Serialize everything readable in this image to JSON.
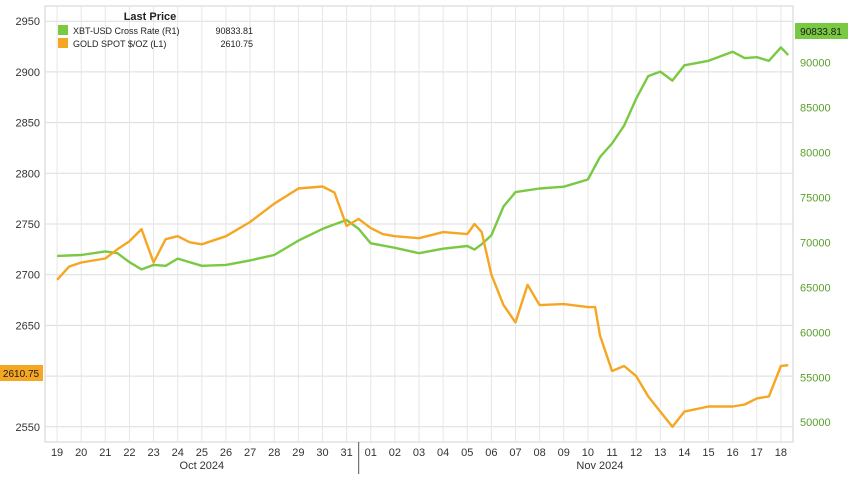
{
  "chart_data": {
    "type": "line",
    "legend": {
      "title": "Last Price",
      "placement": "top-left",
      "entries": [
        {
          "label": "XBT-USD Cross Rate  (R1)",
          "value": "90833.81",
          "color": "#7ac943"
        },
        {
          "label": "GOLD SPOT $/OZ  (L1)",
          "value": "2610.75",
          "color": "#f5a623"
        }
      ]
    },
    "y_left": {
      "ylim": [
        2535,
        2965
      ],
      "ticks": [
        "2950",
        "2900",
        "2850",
        "2800",
        "2750",
        "2700",
        "2650",
        "2600",
        "2550"
      ],
      "last_value_label": "2610.75"
    },
    "y_right": {
      "ylim": [
        47800,
        96300
      ],
      "ticks": [
        "90000",
        "85000",
        "80000",
        "75000",
        "70000",
        "65000",
        "60000",
        "55000",
        "50000"
      ],
      "last_value_label": "90833.81"
    },
    "x_axis": {
      "day_labels": [
        "19",
        "20",
        "21",
        "22",
        "23",
        "24",
        "25",
        "26",
        "27",
        "28",
        "29",
        "30",
        "31",
        "01",
        "02",
        "03",
        "04",
        "05",
        "06",
        "07",
        "08",
        "09",
        "10",
        "11",
        "12",
        "13",
        "14",
        "15",
        "16",
        "17",
        "18"
      ],
      "month_labels": [
        "Oct 2024",
        "Nov 2024"
      ]
    },
    "grid": true,
    "series": [
      {
        "name": "XBT-USD Cross Rate",
        "axis": "right",
        "color": "#7ac943",
        "x": [
          0.0,
          1.0,
          2.0,
          2.5,
          3.0,
          3.5,
          4.0,
          4.5,
          5.0,
          6.0,
          7.0,
          8.0,
          9.0,
          10.0,
          11.0,
          11.5,
          12.0,
          12.5,
          13.0,
          14.0,
          15.0,
          16.0,
          17.0,
          17.3,
          17.6,
          18.0,
          18.5,
          19.0,
          20.0,
          21.0,
          22.0,
          22.5,
          23.0,
          23.5,
          24.0,
          24.5,
          25.0,
          25.5,
          26.0,
          27.0,
          28.0,
          28.5,
          29.0,
          29.5,
          30.0,
          30.3
        ],
        "y": [
          68500,
          68600,
          69000,
          68800,
          67800,
          67000,
          67500,
          67400,
          68200,
          67400,
          67500,
          68000,
          68600,
          70200,
          71500,
          72000,
          72500,
          71500,
          69900,
          69400,
          68800,
          69300,
          69600,
          69200,
          69800,
          70800,
          74000,
          75600,
          76000,
          76200,
          77000,
          79500,
          81000,
          83000,
          86000,
          88500,
          89000,
          88000,
          89700,
          90200,
          91200,
          90500,
          90600,
          90200,
          91700,
          90833.81
        ]
      },
      {
        "name": "GOLD SPOT $/OZ",
        "axis": "left",
        "color": "#f5a623",
        "x": [
          0.0,
          0.5,
          1.0,
          2.0,
          2.5,
          3.0,
          3.5,
          4.0,
          4.5,
          5.0,
          5.5,
          6.0,
          7.0,
          8.0,
          9.0,
          10.0,
          11.0,
          11.5,
          12.0,
          12.5,
          13.0,
          13.5,
          14.0,
          15.0,
          16.0,
          17.0,
          17.3,
          17.6,
          18.0,
          18.5,
          19.0,
          19.5,
          20.0,
          21.0,
          22.0,
          22.3,
          22.5,
          23.0,
          23.5,
          24.0,
          24.5,
          25.0,
          25.5,
          26.0,
          27.0,
          28.0,
          28.5,
          29.0,
          29.5,
          30.0,
          30.3
        ],
        "y": [
          2695,
          2708,
          2712,
          2716,
          2725,
          2733,
          2745,
          2712,
          2735,
          2738,
          2732,
          2730,
          2738,
          2752,
          2770,
          2785,
          2787,
          2781,
          2748,
          2755,
          2746,
          2740,
          2738,
          2736,
          2742,
          2740,
          2750,
          2742,
          2700,
          2670,
          2653,
          2690,
          2670,
          2671,
          2668,
          2668,
          2640,
          2605,
          2610,
          2600,
          2580,
          2565,
          2550,
          2565,
          2570,
          2570,
          2572,
          2578,
          2580,
          2610,
          2610.75
        ]
      }
    ]
  }
}
